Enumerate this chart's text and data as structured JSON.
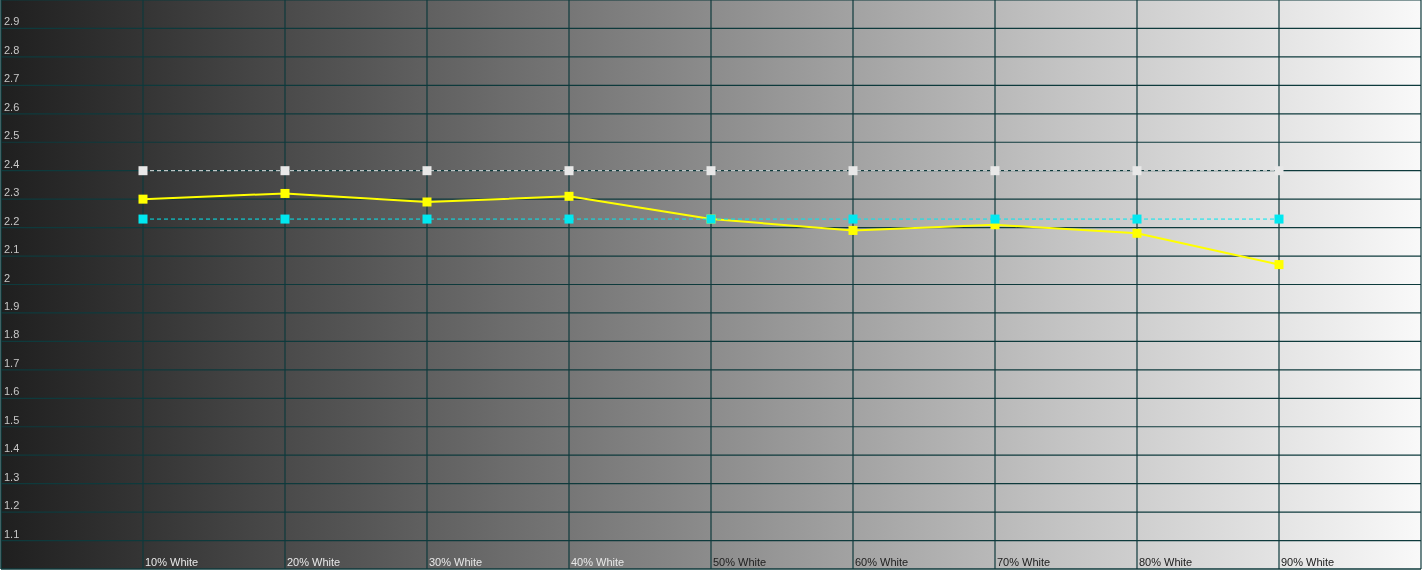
{
  "chart_data": {
    "type": "line",
    "categories": [
      "10% White",
      "20% White",
      "30% White",
      "40% White",
      "50% White",
      "60% White",
      "70% White",
      "80% White",
      "90% White"
    ],
    "series": [
      {
        "color": "#ffff00",
        "values": [
          2.3,
          2.32,
          2.29,
          2.31,
          2.23,
          2.19,
          2.21,
          2.18,
          2.07
        ],
        "line_style": "solid"
      },
      {
        "color": "#00e8f0",
        "values": [
          2.23,
          2.23,
          2.23,
          2.23,
          2.23,
          2.23,
          2.23,
          2.23,
          2.23
        ],
        "line_style": "dashed"
      },
      {
        "color": "#e8e8e8",
        "values": [
          2.4,
          2.4,
          2.4,
          2.4,
          2.4,
          2.4,
          2.4,
          2.4,
          2.4
        ],
        "line_style": "dashed"
      }
    ],
    "ylim": [
      1,
      3
    ],
    "yticks": [
      1.1,
      1.2,
      1.3,
      1.4,
      1.5,
      1.6,
      1.7,
      1.8,
      1.9,
      2,
      2.1,
      2.2,
      2.3,
      2.4,
      2.5,
      2.6,
      2.7,
      2.8,
      2.9
    ],
    "grid": true,
    "marker": "square"
  }
}
